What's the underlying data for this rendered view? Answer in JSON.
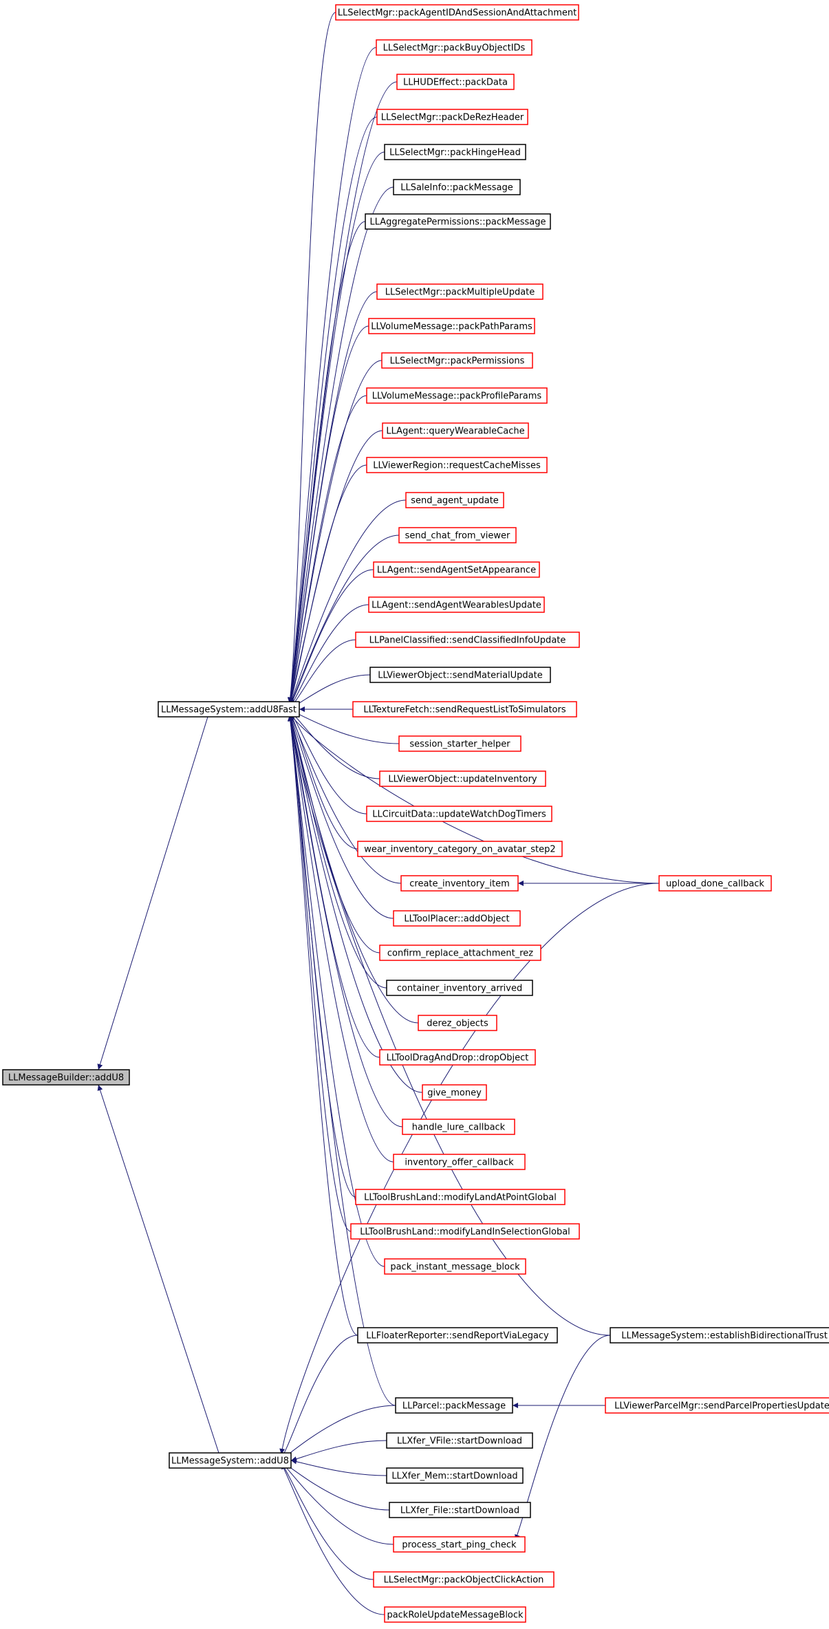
{
  "diagram": {
    "colors": {
      "edge": "#191970",
      "border_red": "#ff0000",
      "border_black": "#000000",
      "focus_fill": "#bfbfbf"
    },
    "nodes": [
      {
        "id": "addU8",
        "label": "LLMessageBuilder::addU8",
        "style": "focus"
      },
      {
        "id": "addU8Fast",
        "label": "LLMessageSystem::addU8Fast",
        "style": "black"
      },
      {
        "id": "msAddU8",
        "label": "LLMessageSystem::addU8",
        "style": "black"
      },
      {
        "id": "n1",
        "label": "LLSelectMgr::packAgentIDAndSessionAndAttachment",
        "style": "red"
      },
      {
        "id": "n2",
        "label": "LLSelectMgr::packBuyObjectIDs",
        "style": "red"
      },
      {
        "id": "n3",
        "label": "LLHUDEffect::packData",
        "style": "red"
      },
      {
        "id": "n4",
        "label": "LLSelectMgr::packDeRezHeader",
        "style": "red"
      },
      {
        "id": "n5",
        "label": "LLSelectMgr::packHingeHead",
        "style": "black"
      },
      {
        "id": "n6",
        "label": "LLSaleInfo::packMessage",
        "style": "black"
      },
      {
        "id": "n7",
        "label": "LLAggregatePermissions::packMessage",
        "style": "black"
      },
      {
        "id": "n8",
        "label": "LLSelectMgr::packMultipleUpdate",
        "style": "red"
      },
      {
        "id": "n9",
        "label": "LLVolumeMessage::packPathParams",
        "style": "red"
      },
      {
        "id": "n10",
        "label": "LLSelectMgr::packPermissions",
        "style": "red"
      },
      {
        "id": "n11",
        "label": "LLVolumeMessage::packProfileParams",
        "style": "red"
      },
      {
        "id": "n12",
        "label": "LLAgent::queryWearableCache",
        "style": "red"
      },
      {
        "id": "n13",
        "label": "LLViewerRegion::requestCacheMisses",
        "style": "red"
      },
      {
        "id": "n14",
        "label": "send_agent_update",
        "style": "red"
      },
      {
        "id": "n15",
        "label": "send_chat_from_viewer",
        "style": "red"
      },
      {
        "id": "n16",
        "label": "LLAgent::sendAgentSetAppearance",
        "style": "red"
      },
      {
        "id": "n17",
        "label": "LLAgent::sendAgentWearablesUpdate",
        "style": "red"
      },
      {
        "id": "n18",
        "label": "LLPanelClassified::sendClassifiedInfoUpdate",
        "style": "red"
      },
      {
        "id": "n19",
        "label": "LLViewerObject::sendMaterialUpdate",
        "style": "black"
      },
      {
        "id": "n20",
        "label": "LLTextureFetch::sendRequestListToSimulators",
        "style": "red"
      },
      {
        "id": "n21",
        "label": "session_starter_helper",
        "style": "red"
      },
      {
        "id": "n22",
        "label": "LLViewerObject::updateInventory",
        "style": "red"
      },
      {
        "id": "n23",
        "label": "LLCircuitData::updateWatchDogTimers",
        "style": "red"
      },
      {
        "id": "n24",
        "label": "wear_inventory_category_on_avatar_step2",
        "style": "red"
      },
      {
        "id": "n25",
        "label": "create_inventory_item",
        "style": "red"
      },
      {
        "id": "n26",
        "label": "LLToolPlacer::addObject",
        "style": "red"
      },
      {
        "id": "n27",
        "label": "confirm_replace_attachment_rez",
        "style": "red"
      },
      {
        "id": "n28",
        "label": "container_inventory_arrived",
        "style": "black"
      },
      {
        "id": "n29",
        "label": "derez_objects",
        "style": "red"
      },
      {
        "id": "n30",
        "label": "LLToolDragAndDrop::dropObject",
        "style": "red"
      },
      {
        "id": "n31",
        "label": "give_money",
        "style": "red"
      },
      {
        "id": "n32",
        "label": "handle_lure_callback",
        "style": "red"
      },
      {
        "id": "n33",
        "label": "inventory_offer_callback",
        "style": "red"
      },
      {
        "id": "n34",
        "label": "LLToolBrushLand::modifyLandAtPointGlobal",
        "style": "red"
      },
      {
        "id": "n35",
        "label": "LLToolBrushLand::modifyLandInSelectionGlobal",
        "style": "red"
      },
      {
        "id": "n36",
        "label": "pack_instant_message_block",
        "style": "red"
      },
      {
        "id": "n37",
        "label": "LLFloaterReporter::sendReportViaLegacy",
        "style": "black"
      },
      {
        "id": "n38",
        "label": "LLParcel::packMessage",
        "style": "black"
      },
      {
        "id": "n39",
        "label": "LLXfer_VFile::startDownload",
        "style": "black"
      },
      {
        "id": "n40",
        "label": "LLXfer_Mem::startDownload",
        "style": "black"
      },
      {
        "id": "n41",
        "label": "LLXfer_File::startDownload",
        "style": "black"
      },
      {
        "id": "n42",
        "label": "process_start_ping_check",
        "style": "red"
      },
      {
        "id": "n43",
        "label": "LLSelectMgr::packObjectClickAction",
        "style": "red"
      },
      {
        "id": "n44",
        "label": "packRoleUpdateMessageBlock",
        "style": "red"
      },
      {
        "id": "upload",
        "label": "upload_done_callback",
        "style": "red"
      },
      {
        "id": "trust",
        "label": "LLMessageSystem::establishBidirectionalTrust",
        "style": "black"
      },
      {
        "id": "parcelMgr",
        "label": "LLViewerParcelMgr::sendParcelPropertiesUpdate",
        "style": "red"
      }
    ],
    "edges": [
      [
        "addU8Fast",
        "addU8"
      ],
      [
        "msAddU8",
        "addU8"
      ],
      [
        "n1",
        "addU8Fast"
      ],
      [
        "n2",
        "addU8Fast"
      ],
      [
        "n3",
        "addU8Fast"
      ],
      [
        "n4",
        "addU8Fast"
      ],
      [
        "n5",
        "addU8Fast"
      ],
      [
        "n6",
        "addU8Fast"
      ],
      [
        "n7",
        "addU8Fast"
      ],
      [
        "upload",
        "addU8Fast"
      ],
      [
        "n8",
        "addU8Fast"
      ],
      [
        "n9",
        "addU8Fast"
      ],
      [
        "n10",
        "addU8Fast"
      ],
      [
        "n11",
        "addU8Fast"
      ],
      [
        "n12",
        "addU8Fast"
      ],
      [
        "n13",
        "addU8Fast"
      ],
      [
        "n14",
        "addU8Fast"
      ],
      [
        "n15",
        "addU8Fast"
      ],
      [
        "n16",
        "addU8Fast"
      ],
      [
        "n17",
        "addU8Fast"
      ],
      [
        "n18",
        "addU8Fast"
      ],
      [
        "n19",
        "addU8Fast"
      ],
      [
        "n20",
        "addU8Fast"
      ],
      [
        "n21",
        "addU8Fast"
      ],
      [
        "n22",
        "addU8Fast"
      ],
      [
        "n23",
        "addU8Fast"
      ],
      [
        "n24",
        "addU8Fast"
      ],
      [
        "n25",
        "addU8Fast"
      ],
      [
        "n26",
        "addU8Fast"
      ],
      [
        "n27",
        "addU8Fast"
      ],
      [
        "n28",
        "addU8Fast"
      ],
      [
        "n29",
        "addU8Fast"
      ],
      [
        "n30",
        "addU8Fast"
      ],
      [
        "n31",
        "addU8Fast"
      ],
      [
        "n32",
        "addU8Fast"
      ],
      [
        "n33",
        "addU8Fast"
      ],
      [
        "n34",
        "addU8Fast"
      ],
      [
        "n35",
        "addU8Fast"
      ],
      [
        "n36",
        "addU8Fast"
      ],
      [
        "trust",
        "addU8Fast"
      ],
      [
        "n37",
        "addU8Fast"
      ],
      [
        "n38",
        "addU8Fast"
      ],
      [
        "upload",
        "n25"
      ],
      [
        "n37",
        "msAddU8"
      ],
      [
        "upload",
        "msAddU8"
      ],
      [
        "n38",
        "msAddU8"
      ],
      [
        "n39",
        "msAddU8"
      ],
      [
        "n40",
        "msAddU8"
      ],
      [
        "n41",
        "msAddU8"
      ],
      [
        "n42",
        "msAddU8"
      ],
      [
        "n43",
        "msAddU8"
      ],
      [
        "n44",
        "msAddU8"
      ],
      [
        "parcelMgr",
        "n38"
      ],
      [
        "trust",
        "n42"
      ]
    ]
  }
}
